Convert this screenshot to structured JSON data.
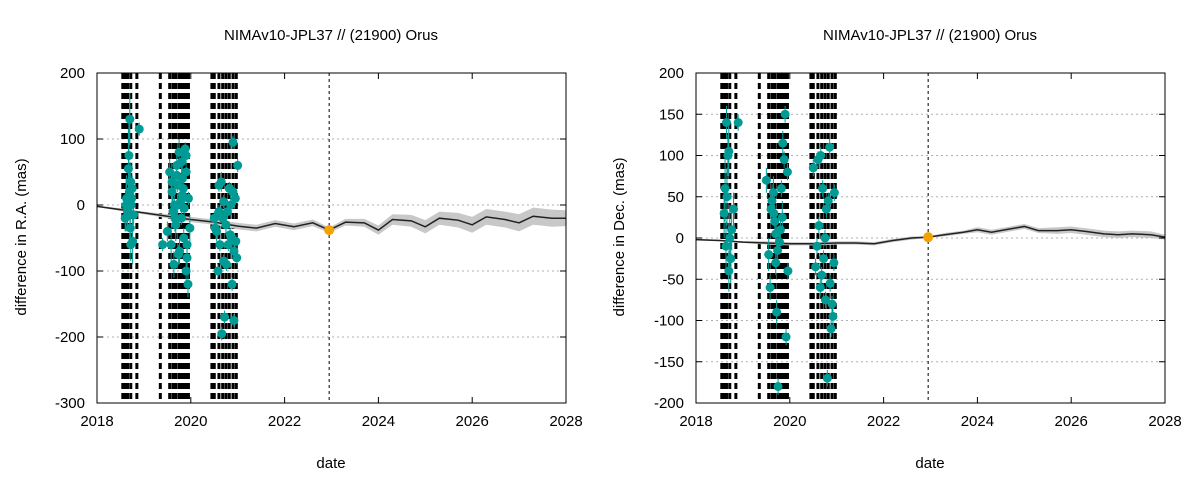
{
  "colors": {
    "point": "#009b95",
    "highlight": "#f5a100",
    "band": "#c8c8c8",
    "model_line": "#222222",
    "obs_lines": "#000000",
    "grid": "#b0b0b0"
  },
  "chart_data": [
    {
      "type": "scatter",
      "title": "NIMAv10-JPL37 // (21900) Orus",
      "xlabel": "date",
      "ylabel": "difference in R.A. (mas)",
      "xlim": [
        2018,
        2028
      ],
      "ylim": [
        -300,
        200
      ],
      "xticks": [
        2018,
        2020,
        2022,
        2024,
        2026,
        2028
      ],
      "yticks": [
        -300,
        -200,
        -100,
        0,
        100,
        200
      ],
      "grid": true,
      "observation_epochs": [
        2018.55,
        2018.6,
        2018.65,
        2018.72,
        2018.85,
        2019.35,
        2019.55,
        2019.62,
        2019.68,
        2019.75,
        2019.8,
        2019.85,
        2019.9,
        2019.95,
        2020.45,
        2020.5,
        2020.6,
        2020.68,
        2020.75,
        2020.82,
        2020.9,
        2020.97
      ],
      "reference_epoch": 2022.95,
      "model": {
        "x": [
          2018.0,
          2018.5,
          2019.0,
          2019.5,
          2020.0,
          2020.5,
          2021.0,
          2021.4,
          2021.8,
          2022.2,
          2022.6,
          2022.95,
          2023.3,
          2023.7,
          2024.0,
          2024.3,
          2024.7,
          2025.0,
          2025.3,
          2025.7,
          2026.0,
          2026.3,
          2026.7,
          2027.0,
          2027.3,
          2027.7,
          2028.0
        ],
        "y": [
          -2,
          -7,
          -12,
          -17,
          -22,
          -26,
          -32,
          -35,
          -28,
          -33,
          -27,
          -38,
          -26,
          -27,
          -38,
          -22,
          -24,
          -33,
          -20,
          -23,
          -30,
          -18,
          -22,
          -27,
          -17,
          -20,
          -20
        ],
        "band": [
          1,
          2,
          2,
          3,
          4,
          4,
          5,
          5,
          5,
          5,
          5,
          4,
          5,
          6,
          7,
          8,
          9,
          10,
          10,
          11,
          12,
          12,
          12,
          13,
          13,
          13,
          12
        ]
      },
      "points": {
        "x": [
          2018.6,
          2018.62,
          2018.65,
          2018.68,
          2018.7,
          2018.72,
          2018.74,
          2018.76,
          2018.78,
          2018.67,
          2018.69,
          2018.73,
          2018.71,
          2018.66,
          2018.63,
          2018.75,
          2018.9,
          2018.7,
          2018.72,
          2019.4,
          2019.5,
          2019.55,
          2019.6,
          2019.62,
          2019.65,
          2019.68,
          2019.7,
          2019.72,
          2019.75,
          2019.78,
          2019.8,
          2019.82,
          2019.85,
          2019.88,
          2019.9,
          2019.92,
          2019.95,
          2019.58,
          2019.64,
          2019.7,
          2019.76,
          2019.84,
          2019.9,
          2019.98,
          2019.6,
          2019.66,
          2019.72,
          2019.8,
          2019.86,
          2019.92,
          2019.74,
          2019.82,
          2019.94,
          2019.9,
          2020.5,
          2020.55,
          2020.6,
          2020.65,
          2020.7,
          2020.75,
          2020.8,
          2020.85,
          2020.9,
          2020.95,
          2021.0,
          2020.58,
          2020.66,
          2020.72,
          2020.78,
          2020.86,
          2020.92,
          2020.98,
          2020.6,
          2020.68,
          2020.76,
          2020.84,
          2020.92,
          2020.62,
          2020.88,
          2020.7,
          2020.9,
          2020.52,
          2020.82,
          2020.96
        ],
        "y": [
          -20,
          0,
          -10,
          75,
          130,
          35,
          10,
          -55,
          -15,
          55,
          20,
          0,
          -35,
          -5,
          10,
          25,
          115,
          15,
          -60,
          -60,
          -40,
          50,
          20,
          -10,
          0,
          -30,
          60,
          30,
          80,
          5,
          -20,
          40,
          -50,
          85,
          75,
          -80,
          10,
          -60,
          -90,
          45,
          -70,
          25,
          -100,
          -35,
          35,
          -20,
          0,
          65,
          -5,
          -60,
          -75,
          15,
          -120,
          50,
          -20,
          -40,
          -10,
          35,
          -85,
          -30,
          -60,
          0,
          95,
          10,
          60,
          -100,
          -195,
          -170,
          -10,
          -50,
          -175,
          -80,
          30,
          -20,
          -90,
          -45,
          -70,
          -60,
          -120,
          5,
          20,
          -35,
          25,
          -55
        ],
        "err": [
          20,
          40,
          25,
          50,
          40,
          30,
          20,
          35,
          15,
          60,
          30,
          20,
          25,
          15,
          35,
          20,
          10,
          45,
          25,
          10,
          15,
          20,
          30,
          25,
          20,
          25,
          15,
          10,
          20,
          15,
          10,
          20,
          15,
          10,
          15,
          20,
          10,
          25,
          20,
          15,
          20,
          15,
          25,
          20,
          15,
          20,
          15,
          20,
          10,
          15,
          15,
          10,
          20,
          10,
          10,
          15,
          10,
          15,
          10,
          15,
          10,
          15,
          10,
          10,
          10,
          10,
          10,
          10,
          10,
          10,
          10,
          10,
          10,
          10,
          10,
          10,
          10,
          10,
          10,
          10,
          10,
          10,
          10,
          10
        ]
      }
    },
    {
      "type": "scatter",
      "title": "NIMAv10-JPL37 // (21900) Orus",
      "xlabel": "date",
      "ylabel": "difference in Dec. (mas)",
      "xlim": [
        2018,
        2028
      ],
      "ylim": [
        -200,
        200
      ],
      "xticks": [
        2018,
        2020,
        2022,
        2024,
        2026,
        2028
      ],
      "yticks": [
        -200,
        -150,
        -100,
        -50,
        0,
        50,
        100,
        150,
        200
      ],
      "grid": true,
      "observation_epochs": [
        2018.55,
        2018.6,
        2018.65,
        2018.72,
        2018.85,
        2019.35,
        2019.55,
        2019.62,
        2019.68,
        2019.75,
        2019.8,
        2019.85,
        2019.9,
        2019.95,
        2020.45,
        2020.5,
        2020.6,
        2020.68,
        2020.75,
        2020.82,
        2020.9,
        2020.97
      ],
      "reference_epoch": 2022.95,
      "model": {
        "x": [
          2018.0,
          2018.5,
          2019.0,
          2019.5,
          2020.0,
          2020.5,
          2021.0,
          2021.4,
          2021.8,
          2022.2,
          2022.6,
          2022.95,
          2023.3,
          2023.7,
          2024.0,
          2024.3,
          2024.7,
          2025.0,
          2025.3,
          2025.7,
          2026.0,
          2026.3,
          2026.7,
          2027.0,
          2027.3,
          2027.7,
          2028.0
        ],
        "y": [
          -2,
          -3,
          -5,
          -6,
          -7,
          -7,
          -6,
          -6,
          -7,
          -3,
          0,
          1,
          4,
          7,
          10,
          7,
          11,
          14,
          9,
          9,
          10,
          8,
          5,
          4,
          5,
          4,
          1
        ],
        "band": [
          1,
          1,
          1,
          2,
          2,
          2,
          2,
          2,
          2,
          2,
          2,
          1,
          2,
          2,
          3,
          3,
          3,
          3,
          3,
          4,
          4,
          4,
          4,
          4,
          4,
          4,
          3
        ]
      },
      "points": {
        "x": [
          2018.6,
          2018.62,
          2018.65,
          2018.68,
          2018.7,
          2018.72,
          2018.74,
          2018.66,
          2018.7,
          2018.9,
          2018.8,
          2018.64,
          2018.76,
          2019.5,
          2019.55,
          2019.6,
          2019.65,
          2019.7,
          2019.75,
          2019.8,
          2019.85,
          2019.9,
          2019.95,
          2019.58,
          2019.68,
          2019.78,
          2019.88,
          2019.62,
          2019.72,
          2019.82,
          2019.92,
          2019.74,
          2019.84,
          2019.7,
          2019.96,
          2019.66,
          2020.5,
          2020.55,
          2020.6,
          2020.65,
          2020.7,
          2020.75,
          2020.8,
          2020.85,
          2020.9,
          2020.95,
          2020.58,
          2020.68,
          2020.78,
          2020.88,
          2020.62,
          2020.72,
          2020.82,
          2020.92,
          2020.66,
          2020.86,
          2020.76,
          2020.94
        ],
        "y": [
          30,
          60,
          140,
          100,
          105,
          0,
          -25,
          50,
          -40,
          140,
          35,
          -10,
          10,
          70,
          -20,
          35,
          55,
          -30,
          -180,
          10,
          115,
          150,
          80,
          -60,
          20,
          -5,
          95,
          45,
          -90,
          60,
          -120,
          -15,
          25,
          5,
          -40,
          30,
          85,
          -35,
          95,
          -60,
          60,
          0,
          -170,
          110,
          -80,
          55,
          -10,
          -45,
          35,
          -110,
          15,
          -25,
          45,
          -95,
          100,
          -55,
          -75,
          -30
        ],
        "err": [
          30,
          40,
          20,
          25,
          30,
          40,
          30,
          35,
          25,
          10,
          20,
          30,
          25,
          15,
          20,
          15,
          20,
          15,
          10,
          20,
          15,
          10,
          10,
          15,
          20,
          15,
          10,
          20,
          15,
          10,
          10,
          15,
          20,
          10,
          10,
          15,
          10,
          10,
          10,
          10,
          10,
          10,
          10,
          10,
          10,
          10,
          10,
          10,
          10,
          10,
          10,
          10,
          10,
          10,
          10,
          10,
          10,
          10
        ]
      }
    }
  ]
}
